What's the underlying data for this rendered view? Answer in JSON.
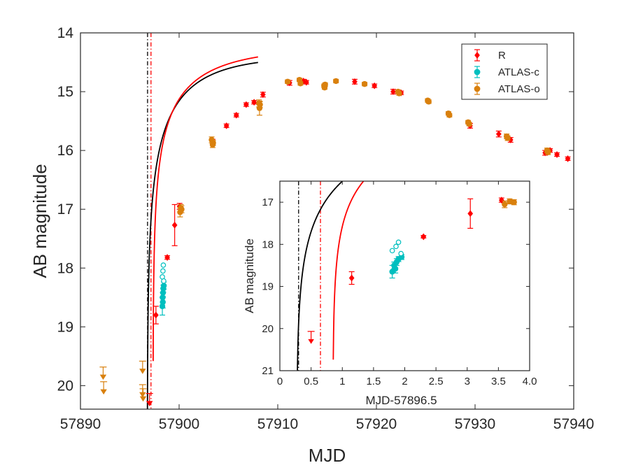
{
  "chart_data": [
    {
      "type": "scatter",
      "name": "main",
      "xlabel": "MJD",
      "ylabel": "AB magnitude",
      "xlim": [
        57890,
        57940
      ],
      "ylim": [
        14,
        20.4
      ],
      "y_reversed": true,
      "xticks": [
        57890,
        57900,
        57910,
        57920,
        57930,
        57940
      ],
      "yticks": [
        14,
        15,
        16,
        17,
        18,
        19,
        20
      ],
      "grid": false,
      "legend": {
        "placement": "top-right",
        "entries": [
          {
            "label": "R",
            "color": "#ff0000",
            "marker": "diamond"
          },
          {
            "label": "ATLAS-c",
            "color": "#00bfbf",
            "marker": "circle"
          },
          {
            "label": "ATLAS-o",
            "color": "#d9800d",
            "marker": "circle"
          }
        ]
      },
      "vlines": [
        {
          "x": 57896.8,
          "color": "#000000",
          "style": "dashdot"
        },
        {
          "x": 57897.15,
          "color": "#ff0000",
          "style": "dashdot"
        }
      ],
      "series": [
        {
          "name": "R",
          "color": "#ff0000",
          "marker": "diamond",
          "points": [
            {
              "x": 57897.65,
              "y": 18.8,
              "err": 0.15
            },
            {
              "x": 57898.8,
              "y": 17.82,
              "err": 0.03
            },
            {
              "x": 57899.55,
              "y": 17.27,
              "err": 0.35
            },
            {
              "x": 57900.05,
              "y": 16.95,
              "err": 0.05
            },
            {
              "x": 57903.4,
              "y": 15.85,
              "err": 0.04
            },
            {
              "x": 57904.8,
              "y": 15.58,
              "err": 0.03
            },
            {
              "x": 57905.8,
              "y": 15.4,
              "err": 0.03
            },
            {
              "x": 57906.8,
              "y": 15.22,
              "err": 0.03
            },
            {
              "x": 57907.6,
              "y": 15.18,
              "err": 0.03
            },
            {
              "x": 57908.5,
              "y": 15.05,
              "err": 0.04
            },
            {
              "x": 57911.2,
              "y": 14.85,
              "err": 0.04
            },
            {
              "x": 57912.6,
              "y": 14.82,
              "err": 0.03
            },
            {
              "x": 57912.9,
              "y": 14.84,
              "err": 0.03
            },
            {
              "x": 57917.8,
              "y": 14.83,
              "err": 0.04
            },
            {
              "x": 57919.8,
              "y": 14.9,
              "err": 0.03
            },
            {
              "x": 57921.7,
              "y": 15.0,
              "err": 0.04
            },
            {
              "x": 57922.5,
              "y": 15.02,
              "err": 0.03
            },
            {
              "x": 57929.5,
              "y": 15.58,
              "err": 0.04
            },
            {
              "x": 57932.4,
              "y": 15.72,
              "err": 0.05
            },
            {
              "x": 57933.6,
              "y": 15.82,
              "err": 0.04
            },
            {
              "x": 57937.1,
              "y": 16.04,
              "err": 0.04
            },
            {
              "x": 57937.6,
              "y": 16.0,
              "err": 0.03
            },
            {
              "x": 57938.3,
              "y": 16.07,
              "err": 0.03
            },
            {
              "x": 57939.4,
              "y": 16.14,
              "err": 0.03
            }
          ],
          "upper_limits": [
            {
              "x": 57897.0,
              "y": 20.3
            }
          ]
        },
        {
          "name": "ATLAS-c",
          "color": "#00bfbf",
          "marker": "circle",
          "points": [
            {
              "x": 57898.3,
              "y": 18.65,
              "err": 0.15
            },
            {
              "x": 57898.33,
              "y": 18.5,
              "err": 0.08
            },
            {
              "x": 57898.37,
              "y": 18.42,
              "err": 0.08
            },
            {
              "x": 57898.4,
              "y": 18.35,
              "err": 0.06
            },
            {
              "x": 57898.35,
              "y": 18.58,
              "err": 0.1
            },
            {
              "x": 57898.45,
              "y": 18.3,
              "err": 0.06
            }
          ],
          "open_points": [
            {
              "x": 57898.3,
              "y": 18.15
            },
            {
              "x": 57898.36,
              "y": 18.05
            },
            {
              "x": 57898.4,
              "y": 17.95
            },
            {
              "x": 57898.44,
              "y": 18.22
            }
          ]
        },
        {
          "name": "ATLAS-o",
          "color": "#d9800d",
          "marker": "circle",
          "points": [
            {
              "x": 57900.1,
              "y": 17.05,
              "err": 0.08
            },
            {
              "x": 57900.18,
              "y": 16.98,
              "err": 0.06
            },
            {
              "x": 57900.25,
              "y": 17.0,
              "err": 0.06
            },
            {
              "x": 57903.3,
              "y": 15.82,
              "err": 0.05
            },
            {
              "x": 57903.4,
              "y": 15.9,
              "err": 0.05
            },
            {
              "x": 57903.45,
              "y": 15.87,
              "err": 0.04
            },
            {
              "x": 57908.1,
              "y": 15.2,
              "err": 0.06
            },
            {
              "x": 57908.15,
              "y": 15.28,
              "err": 0.12
            },
            {
              "x": 57908.2,
              "y": 15.22,
              "err": 0.05
            },
            {
              "x": 57911.0,
              "y": 14.83,
              "err": 0.03
            },
            {
              "x": 57912.2,
              "y": 14.8,
              "err": 0.03
            },
            {
              "x": 57912.3,
              "y": 14.86,
              "err": 0.03
            },
            {
              "x": 57914.7,
              "y": 14.9,
              "err": 0.03
            },
            {
              "x": 57914.75,
              "y": 14.93,
              "err": 0.03
            },
            {
              "x": 57914.8,
              "y": 14.88,
              "err": 0.03
            },
            {
              "x": 57915.9,
              "y": 14.82,
              "err": 0.03
            },
            {
              "x": 57918.8,
              "y": 14.87,
              "err": 0.03
            },
            {
              "x": 57922.2,
              "y": 15.0,
              "err": 0.03
            },
            {
              "x": 57922.3,
              "y": 15.03,
              "err": 0.03
            },
            {
              "x": 57925.2,
              "y": 15.15,
              "err": 0.03
            },
            {
              "x": 57925.3,
              "y": 15.17,
              "err": 0.03
            },
            {
              "x": 57927.3,
              "y": 15.37,
              "err": 0.03
            },
            {
              "x": 57927.4,
              "y": 15.4,
              "err": 0.03
            },
            {
              "x": 57929.3,
              "y": 15.52,
              "err": 0.03
            },
            {
              "x": 57929.4,
              "y": 15.55,
              "err": 0.03
            },
            {
              "x": 57933.2,
              "y": 15.76,
              "err": 0.04
            },
            {
              "x": 57933.3,
              "y": 15.79,
              "err": 0.04
            },
            {
              "x": 57937.3,
              "y": 16.0,
              "err": 0.04
            },
            {
              "x": 57937.4,
              "y": 16.03,
              "err": 0.04
            }
          ],
          "upper_limits": [
            {
              "x": 57892.3,
              "y": 19.85
            },
            {
              "x": 57892.35,
              "y": 20.1
            },
            {
              "x": 57896.3,
              "y": 19.75
            },
            {
              "x": 57896.3,
              "y": 20.15
            },
            {
              "x": 57896.35,
              "y": 20.22
            }
          ]
        }
      ],
      "fits": [
        {
          "name": "fit-black",
          "color": "#000000",
          "t0": 57896.77,
          "peak_mag": 14.4,
          "scale": 15.0,
          "power": 2.0
        },
        {
          "name": "fit-red",
          "color": "#ff0000",
          "t0": 57897.35,
          "peak_mag": 14.25,
          "scale": 15.5,
          "power": 1.75
        }
      ]
    },
    {
      "type": "scatter",
      "name": "inset",
      "xlabel": "MJD-57896.5",
      "ylabel": "AB magnitude",
      "xlim": [
        0,
        4.0
      ],
      "ylim": [
        16.5,
        21
      ],
      "y_reversed": true,
      "xticks": [
        0,
        0.5,
        1,
        1.5,
        2,
        2.5,
        3,
        3.5,
        4.0
      ],
      "xtick_labels": [
        "0",
        "0.5",
        "1",
        "1.5",
        "2",
        "2.5",
        "3",
        "3.5",
        "4.0"
      ],
      "yticks": [
        17,
        18,
        19,
        20,
        21
      ],
      "offset": 57896.5,
      "vlines": [
        {
          "x": 0.3,
          "color": "#000000",
          "style": "dashdot"
        },
        {
          "x": 0.65,
          "color": "#ff0000",
          "style": "dashdot"
        }
      ]
    }
  ]
}
